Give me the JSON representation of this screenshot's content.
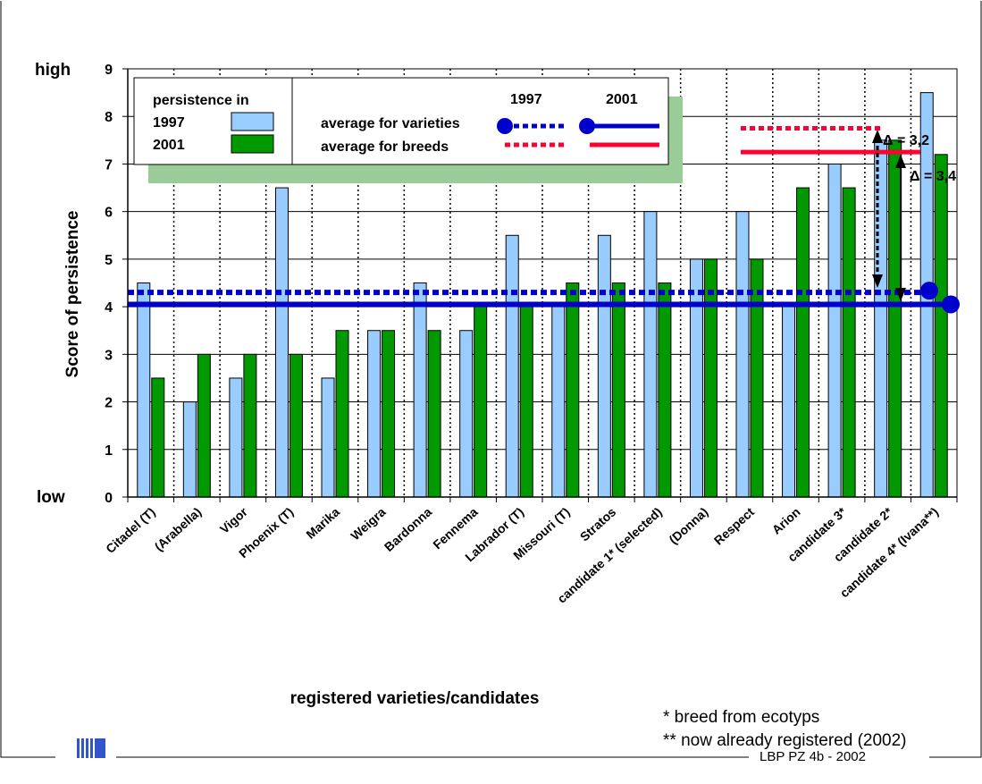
{
  "chart_data": {
    "type": "bar",
    "ylabel": "Score of persistence",
    "xlabel": "registered varieties/candidates",
    "y_low_label": "low",
    "y_high_label": "high",
    "ylim": [
      0,
      9
    ],
    "yticks": [
      "0",
      "1",
      "2",
      "3",
      "4",
      "5",
      "6",
      "7",
      "8",
      "9"
    ],
    "grid": "horizontal solid, vertical dotted",
    "categories": [
      "Citadel (T)",
      "(Arabella)",
      "Vigor",
      "Phoenix (T)",
      "Marika",
      "Weigra",
      "Bardonna",
      "Fennema",
      "Labrador (T)",
      "Missouri (T)",
      "Stratos",
      "candidate 1* (selected)",
      "(Donna)",
      "Respect",
      "Arion",
      "candidate 3*",
      "candidate 2*",
      "candidate 4* (Ivana**)"
    ],
    "series": [
      {
        "name": "1997",
        "color": "#99ccff",
        "values": [
          4.5,
          2,
          2.5,
          6.5,
          2.5,
          3.5,
          4.5,
          3.5,
          5.5,
          4,
          5.5,
          6,
          5,
          6,
          4,
          7,
          7.5,
          8.5
        ]
      },
      {
        "name": "2001",
        "color": "#009900",
        "values": [
          2.5,
          3,
          3,
          3,
          3.5,
          3.5,
          3.5,
          4,
          4,
          4.5,
          4.5,
          4.5,
          5,
          5,
          6.5,
          6.5,
          7.5,
          7.2
        ]
      }
    ],
    "legend": {
      "title": "persistence in",
      "entries": [
        "1997",
        "2001"
      ],
      "col_1997": "1997",
      "col_2001": "2001",
      "line_varieties": "average for varieties",
      "line_breeds": "average for breeds"
    },
    "reference_lines": [
      {
        "label": "average for varieties",
        "year": "1997",
        "value": 4.3,
        "color": "#0000cc",
        "style": "dotted"
      },
      {
        "label": "average for breeds",
        "year": "1997",
        "value": 7.75,
        "color": "#ff0033",
        "style": "dotted"
      },
      {
        "label": "average for breeds",
        "year": "2001",
        "value": 7.25,
        "color": "#ff0033",
        "style": "solid"
      },
      {
        "label": "average for varieties",
        "year": "2001",
        "value": 4.05,
        "color": "#0000cc",
        "style": "solid"
      }
    ],
    "annotations": [
      "Δ = 3,2",
      "Δ = 3,4"
    ]
  },
  "notes": {
    "note1": "*   breed from ecotyps",
    "note2": "** now already registered (2002)"
  },
  "footer": {
    "slide_id": "LBP PZ 4b - 2002"
  },
  "colors": {
    "bar_1997": "#99ccff",
    "bar_2001": "#009900",
    "varieties_line": "#0000cc",
    "breeds_line": "#ff0033",
    "legend_shadow": "#99cc99",
    "logo": "#3355cc"
  }
}
